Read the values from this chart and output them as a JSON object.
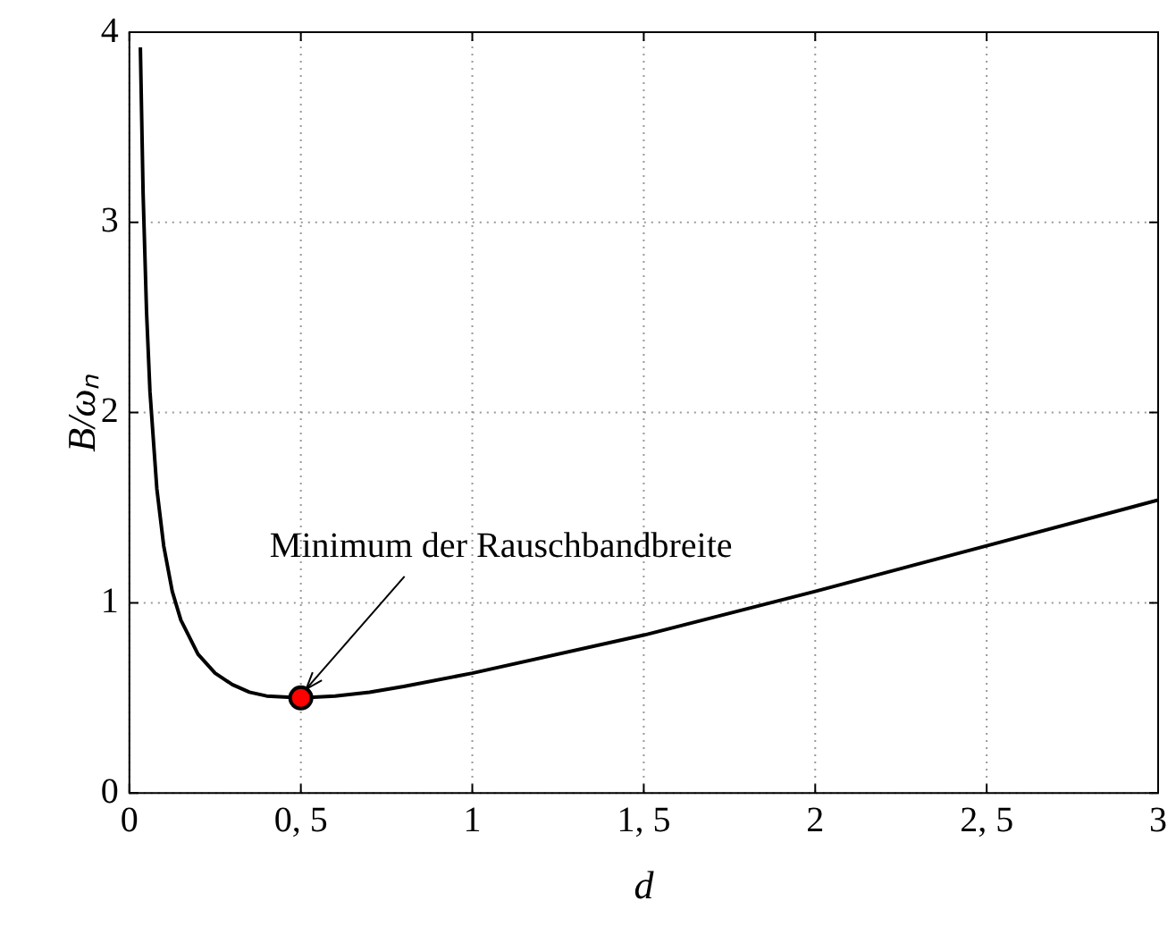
{
  "chart_data": {
    "type": "line",
    "xlabel": "d",
    "ylabel": "B/ωₙ",
    "xlim": [
      0,
      3
    ],
    "xticks": [
      0,
      {
        "value": 0.5,
        "label": "0, 5"
      },
      1,
      {
        "value": 1.5,
        "label": "1, 5"
      },
      2,
      {
        "value": 2.5,
        "label": "2, 5"
      },
      3
    ],
    "ylim": [
      0,
      4
    ],
    "yticks": [
      0,
      1,
      2,
      3,
      4
    ],
    "grid": true,
    "legend": false,
    "line_style": "solid",
    "series": [
      {
        "color": "#000000",
        "x": [
          0.032,
          0.04,
          0.05,
          0.06,
          0.08,
          0.1,
          0.125,
          0.15,
          0.2,
          0.25,
          0.3,
          0.35,
          0.4,
          0.5,
          0.6,
          0.7,
          0.8,
          1,
          1.5,
          2,
          2.5,
          3
        ],
        "values": [
          3.92,
          3.15,
          2.53,
          2.11,
          1.6,
          1.3,
          1.06,
          0.91,
          0.73,
          0.63,
          0.57,
          0.53,
          0.51,
          0.5,
          0.51,
          0.53,
          0.56,
          0.63,
          0.83,
          1.06,
          1.3,
          1.54
        ]
      },
      {
        "type": "scatter",
        "marker": "circle",
        "color": "#ff0000",
        "x": [
          0.5
        ],
        "values": [
          0.5
        ]
      }
    ],
    "annotations": [
      {
        "text": "Minimum der Rauschbandbreite",
        "x": 0.5,
        "y": 0.5
      }
    ]
  }
}
